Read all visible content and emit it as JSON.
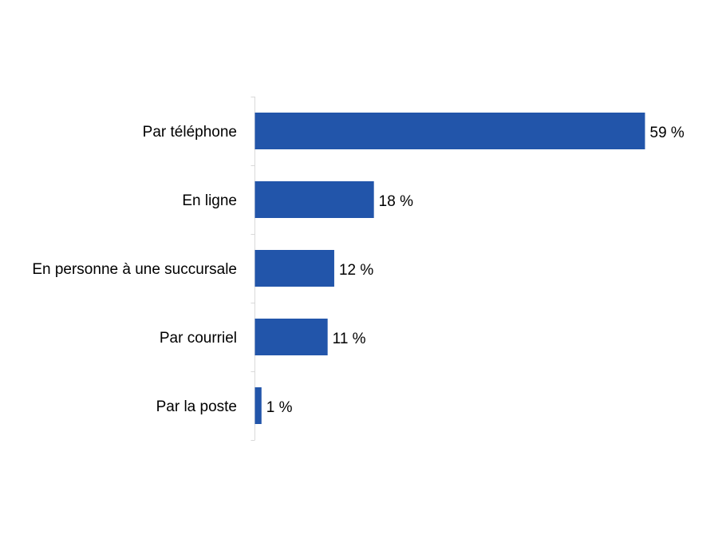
{
  "chart_data": {
    "type": "bar",
    "orientation": "horizontal",
    "categories": [
      "Par téléphone",
      "En ligne",
      "En personne à une succursale",
      "Par courriel",
      "Par la poste"
    ],
    "values": [
      59,
      18,
      12,
      11,
      1
    ],
    "value_labels": [
      "59 %",
      "18 %",
      "12 %",
      "11 %",
      "1 %"
    ],
    "title": "",
    "xlabel": "",
    "ylabel": "",
    "xlim": [
      0,
      60
    ],
    "grid": false,
    "legend": "none",
    "bar_color": "#2255AA",
    "axis_color": "#D9D9D9"
  }
}
